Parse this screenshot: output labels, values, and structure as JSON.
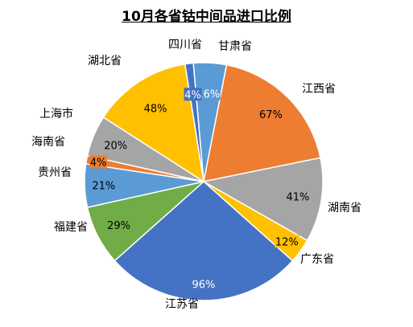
{
  "chart_data": {
    "type": "pie",
    "title": "10月各省钴中间品进口比例",
    "slices": [
      {
        "name": "甘肃省",
        "label": "16%",
        "value": 16,
        "color": "#5b9bd5",
        "label_color": "#ffffff"
      },
      {
        "name": "江西省",
        "label": "67%",
        "value": 67,
        "color": "#ed7d31",
        "label_color": "#000000"
      },
      {
        "name": "湖南省",
        "label": "41%",
        "value": 41,
        "color": "#a5a5a5",
        "label_color": "#000000"
      },
      {
        "name": "广东省",
        "label": "12%",
        "value": 12,
        "color": "#ffc000",
        "label_color": "#000000"
      },
      {
        "name": "江苏省",
        "label": "96%",
        "value": 96,
        "color": "#4472c4",
        "label_color": "#ffffff"
      },
      {
        "name": "福建省",
        "label": "29%",
        "value": 29,
        "color": "#70ad47",
        "label_color": "#000000"
      },
      {
        "name": "贵州省",
        "label": "21%",
        "value": 21,
        "color": "#5b9bd5",
        "label_color": "#000000"
      },
      {
        "name": "海南省",
        "label": "4%",
        "value": 4,
        "color": "#ed7d31",
        "label_color": "#000000"
      },
      {
        "name": "上海市",
        "label": "20%",
        "value": 20,
        "color": "#a5a5a5",
        "label_color": "#000000"
      },
      {
        "name": "湖北省",
        "label": "48%",
        "value": 48,
        "color": "#ffc000",
        "label_color": "#000000"
      },
      {
        "name": "四川省",
        "label": "4%",
        "value": 4,
        "color": "#4472c4",
        "label_color": "#ffffff"
      }
    ]
  }
}
